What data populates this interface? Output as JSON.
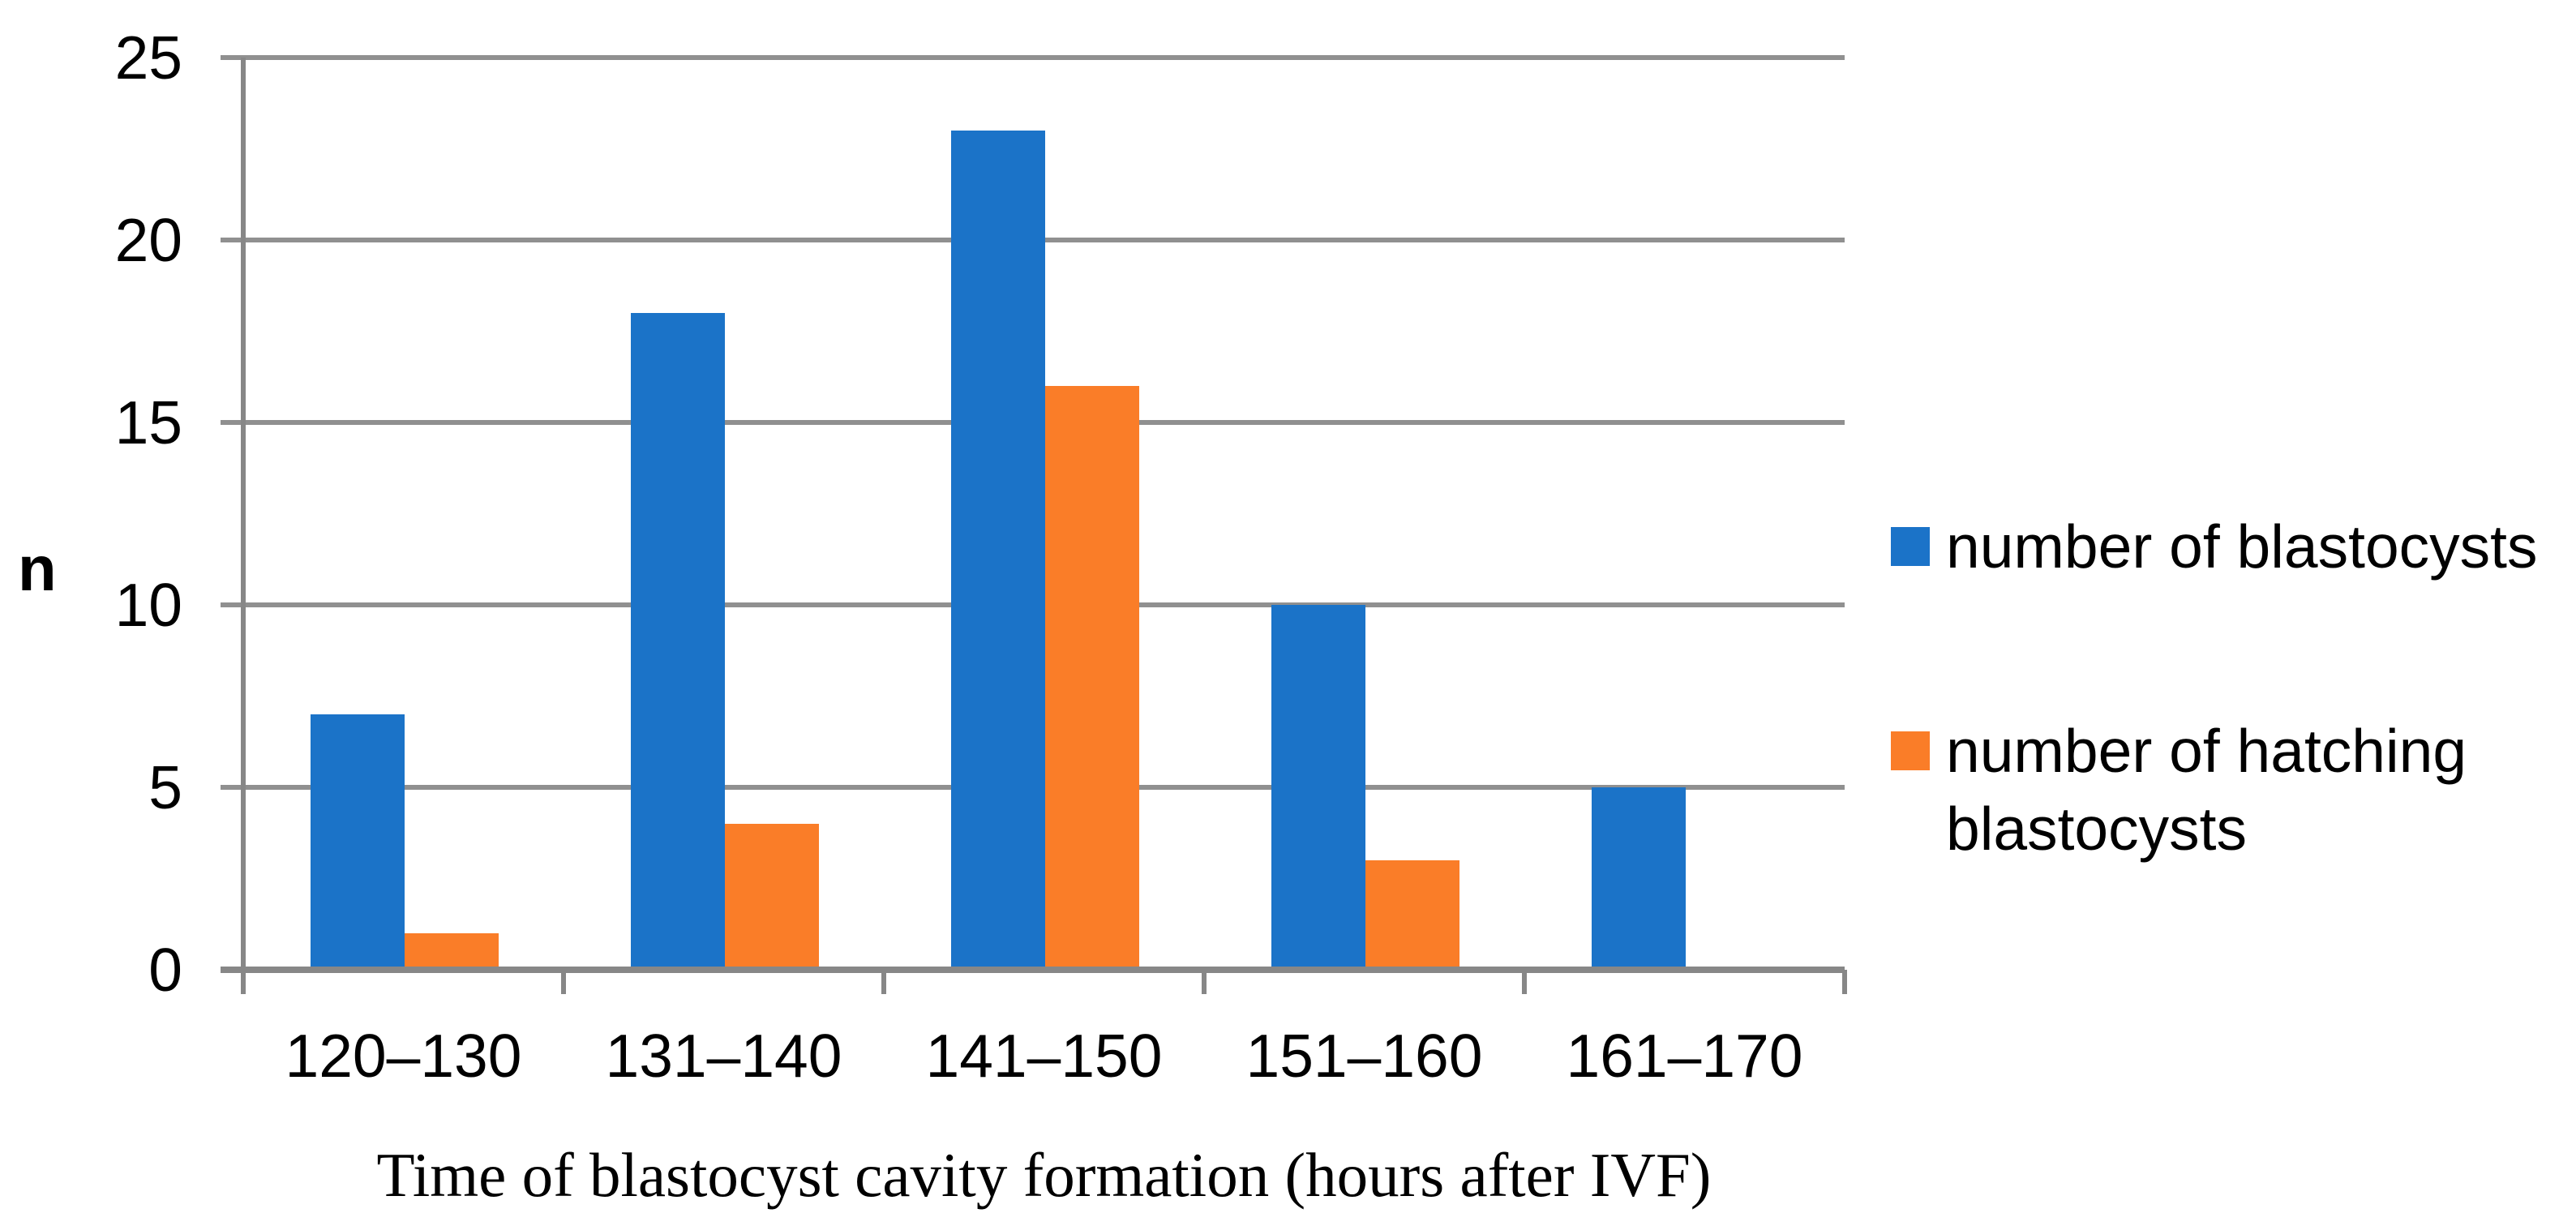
{
  "chart_data": {
    "type": "bar",
    "title": "",
    "categories": [
      "120–130",
      "131–140",
      "141–150",
      "151–160",
      "161–170"
    ],
    "series": [
      {
        "name": "number of blastocysts",
        "color": "#1B73C8",
        "values": [
          7,
          18,
          23,
          10,
          5
        ]
      },
      {
        "name": "number of hatching blastocysts",
        "color": "#FA7D28",
        "values": [
          1,
          4,
          16,
          3,
          0
        ]
      }
    ],
    "xlabel": "Time of blastocyst cavity formation (hours after IVF)",
    "ylabel": "n",
    "ylim": [
      0,
      25
    ],
    "ytick_step": 5,
    "yticks": [
      25,
      20,
      15,
      10,
      5,
      0
    ],
    "grid": true,
    "legend_position": "right"
  },
  "colors": {
    "grid": "#909090",
    "axis": "#878787",
    "text": "#000000",
    "background": "#FFFFFF"
  }
}
